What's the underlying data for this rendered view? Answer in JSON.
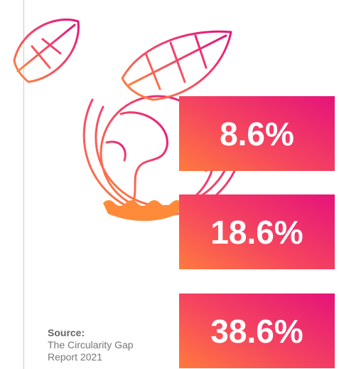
{
  "stats": [
    "8.6%",
    "18.6%",
    "38.6%"
  ],
  "source": {
    "label": "Source:",
    "lines": [
      "The Circularity Gap",
      "Report 2021"
    ]
  }
}
